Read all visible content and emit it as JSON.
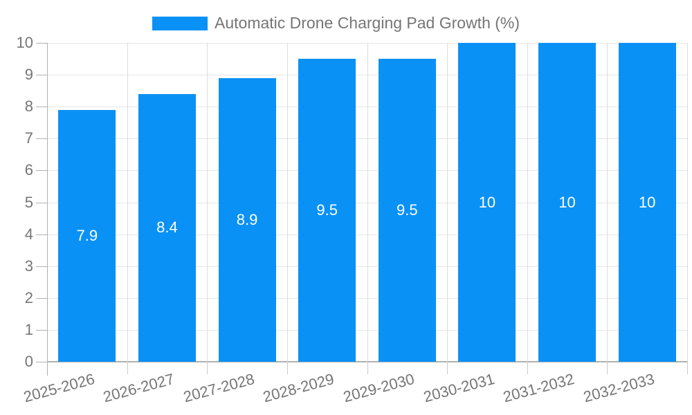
{
  "legend": {
    "label": "Automatic Drone Charging Pad Growth (%)"
  },
  "chart_data": {
    "type": "bar",
    "title": "Automatic Drone Charging Pad Growth (%)",
    "categories": [
      "2025-2026",
      "2026-2027",
      "2027-2028",
      "2028-2029",
      "2029-2030",
      "2030-2031",
      "2031-2032",
      "2032-2033"
    ],
    "values": [
      7.9,
      8.4,
      8.9,
      9.5,
      9.5,
      10,
      10,
      10
    ],
    "bar_labels": [
      "7.9",
      "8.4",
      "8.9",
      "9.5",
      "9.5",
      "10",
      "10",
      "10"
    ],
    "series": [
      {
        "name": "Automatic Drone Charging Pad Growth (%)",
        "values": [
          7.9,
          8.4,
          8.9,
          9.5,
          9.5,
          10,
          10,
          10
        ]
      }
    ],
    "xlabel": "",
    "ylabel": "",
    "ylim": [
      0,
      10
    ],
    "yticks": [
      0,
      1,
      2,
      3,
      4,
      5,
      6,
      7,
      8,
      9,
      10
    ],
    "grid": true,
    "legend_position": "top",
    "colors": {
      "bar": "#0A91F5",
      "axis_text": "#757575",
      "bar_value_text": "#ffffff",
      "gridline_h": "#e6e6e6",
      "gridline_v": "#dcdcdc",
      "axis_line": "#b0b0b0",
      "tick_x": "#c9c9c9",
      "background": "#ffffff"
    }
  }
}
